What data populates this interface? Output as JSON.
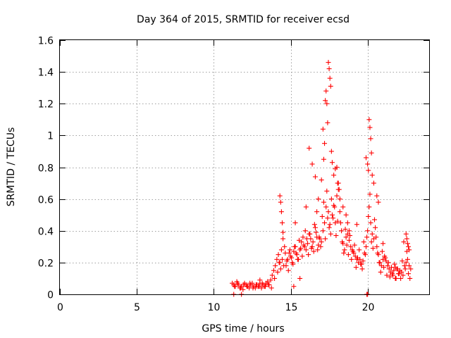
{
  "chart_data": {
    "type": "scatter",
    "title": "Day 364 of 2015, SRMTID for receiver ecsd",
    "xlabel": "GPS time / hours",
    "ylabel": "SRMTID / TECUs",
    "xlim": [
      0,
      24
    ],
    "ylim": [
      0,
      1.6
    ],
    "xticks": [
      0,
      5,
      10,
      15,
      20
    ],
    "xtick_labels": [
      "0",
      "5",
      "10",
      "15",
      "20"
    ],
    "yticks": [
      0,
      0.2,
      0.4,
      0.6,
      0.8,
      1,
      1.2,
      1.4,
      1.6
    ],
    "ytick_labels": [
      "0",
      "0.2",
      "0.4",
      "0.6",
      "0.8",
      "1",
      "1.2",
      "1.4",
      "1.6"
    ],
    "grid": true,
    "marker": "+",
    "marker_color": "#ff0000",
    "series": [
      {
        "name": "SRMTID",
        "x": [
          11.2,
          11.3,
          11.4,
          11.5,
          11.6,
          11.7,
          11.8,
          11.9,
          12.0,
          12.1,
          12.2,
          12.3,
          12.4,
          12.5,
          12.6,
          12.7,
          12.8,
          12.9,
          13.0,
          13.1,
          13.2,
          13.3,
          13.4,
          13.5,
          13.6,
          13.7,
          13.8,
          13.9,
          14.0,
          14.1,
          14.2,
          14.3,
          14.4,
          14.5,
          14.6,
          14.7,
          14.8,
          14.9,
          15.0,
          15.1,
          15.2,
          15.3,
          15.4,
          15.5,
          15.6,
          15.7,
          15.8,
          15.9,
          16.0,
          16.1,
          16.2,
          16.3,
          16.4,
          16.5,
          16.6,
          16.7,
          16.8,
          16.9,
          17.0,
          17.1,
          17.2,
          17.3,
          17.4,
          17.5,
          17.6,
          17.7,
          17.8,
          17.9,
          18.0,
          18.1,
          18.2,
          18.3,
          18.4,
          18.5,
          18.6,
          18.7,
          18.8,
          18.9,
          19.0,
          19.1,
          19.2,
          19.3,
          19.4,
          19.5,
          19.6,
          19.7,
          19.8,
          19.9,
          20.0,
          20.1,
          20.2,
          20.3,
          20.4,
          20.5,
          20.6,
          20.7,
          20.8,
          20.9,
          21.0,
          21.1,
          21.2,
          21.3,
          21.4,
          21.5,
          21.6,
          21.7,
          21.8,
          21.9,
          22.0,
          22.1,
          22.2,
          22.3,
          22.4,
          22.5,
          22.6,
          22.7,
          22.8,
          11.35,
          11.55,
          11.75,
          11.95,
          12.15,
          12.35,
          12.55,
          12.75,
          12.95,
          13.15,
          13.35,
          13.55,
          13.75,
          13.95,
          14.15,
          14.25,
          14.35,
          14.45,
          14.55,
          14.65,
          14.75,
          14.85,
          14.95,
          15.05,
          15.15,
          15.25,
          15.35,
          15.45,
          15.55,
          15.65,
          15.75,
          15.85,
          15.95,
          16.05,
          16.15,
          16.25,
          16.35,
          16.45,
          16.55,
          16.65,
          16.75,
          16.85,
          16.95,
          17.05,
          17.15,
          17.25,
          17.35,
          17.45,
          17.55,
          17.65,
          17.75,
          17.85,
          17.95,
          18.05,
          18.15,
          18.25,
          18.35,
          18.45,
          18.55,
          18.65,
          18.75,
          18.85,
          18.95,
          19.05,
          19.15,
          19.25,
          19.35,
          19.45,
          19.55,
          19.65,
          19.75,
          19.85,
          19.95,
          20.05,
          20.15,
          20.25,
          20.35,
          20.45,
          20.55,
          20.65,
          20.75,
          20.85,
          20.95,
          21.05,
          21.15,
          21.25,
          21.35,
          21.45,
          21.55,
          21.65,
          21.75,
          21.85,
          21.95,
          22.05,
          22.15,
          22.25,
          22.35,
          22.45,
          22.55,
          22.65,
          22.75,
          14.3,
          14.35,
          14.4,
          14.45,
          15.2,
          15.3,
          16.0,
          16.2,
          16.4,
          16.6,
          16.8,
          17.0,
          17.1,
          17.2,
          17.3,
          17.35,
          17.4,
          17.45,
          17.5,
          17.55,
          17.6,
          17.65,
          17.7,
          17.8,
          17.9,
          18.0,
          18.05,
          18.1,
          18.2,
          18.6,
          18.7,
          18.8,
          19.9,
          20.0,
          20.05,
          20.1,
          20.15,
          20.2,
          20.25,
          20.3,
          20.4,
          20.6,
          20.7,
          22.5,
          22.55,
          22.6,
          22.65,
          22.7,
          14.5,
          15.6,
          16.7,
          17.15,
          17.25,
          18.4,
          19.3,
          21.0,
          21.8,
          11.3,
          11.8,
          13.0,
          19.95,
          20.0
        ],
        "y": [
          0.07,
          0.06,
          0.05,
          0.08,
          0.06,
          0.04,
          0.05,
          0.03,
          0.07,
          0.06,
          0.05,
          0.04,
          0.06,
          0.07,
          0.05,
          0.04,
          0.06,
          0.05,
          0.07,
          0.04,
          0.06,
          0.05,
          0.07,
          0.08,
          0.06,
          0.09,
          0.12,
          0.15,
          0.18,
          0.22,
          0.25,
          0.2,
          0.28,
          0.35,
          0.3,
          0.18,
          0.22,
          0.26,
          0.24,
          0.2,
          0.27,
          0.3,
          0.25,
          0.22,
          0.28,
          0.33,
          0.36,
          0.3,
          0.28,
          0.32,
          0.38,
          0.35,
          0.3,
          0.27,
          0.42,
          0.36,
          0.31,
          0.35,
          0.33,
          0.4,
          0.45,
          0.55,
          0.48,
          0.42,
          0.38,
          0.5,
          0.56,
          0.45,
          0.62,
          0.7,
          0.52,
          0.4,
          0.32,
          0.28,
          0.36,
          0.38,
          0.34,
          0.3,
          0.28,
          0.26,
          0.24,
          0.22,
          0.2,
          0.22,
          0.19,
          0.21,
          0.26,
          0.3,
          0.4,
          0.55,
          0.45,
          0.38,
          0.35,
          0.42,
          0.3,
          0.25,
          0.2,
          0.18,
          0.22,
          0.24,
          0.21,
          0.18,
          0.16,
          0.14,
          0.13,
          0.15,
          0.17,
          0.16,
          0.13,
          0.15,
          0.14,
          0.12,
          0.18,
          0.2,
          0.22,
          0.18,
          0.16,
          0.05,
          0.07,
          0.04,
          0.06,
          0.05,
          0.07,
          0.04,
          0.06,
          0.05,
          0.07,
          0.05,
          0.06,
          0.04,
          0.1,
          0.14,
          0.2,
          0.16,
          0.22,
          0.18,
          0.26,
          0.21,
          0.15,
          0.28,
          0.23,
          0.19,
          0.3,
          0.26,
          0.22,
          0.34,
          0.29,
          0.24,
          0.31,
          0.4,
          0.35,
          0.25,
          0.38,
          0.29,
          0.33,
          0.44,
          0.39,
          0.28,
          0.36,
          0.3,
          0.49,
          0.58,
          0.35,
          0.65,
          0.52,
          0.44,
          0.6,
          0.48,
          0.55,
          0.37,
          0.46,
          0.66,
          0.45,
          0.33,
          0.26,
          0.41,
          0.31,
          0.25,
          0.37,
          0.22,
          0.27,
          0.31,
          0.17,
          0.23,
          0.28,
          0.19,
          0.16,
          0.33,
          0.25,
          0.36,
          0.49,
          0.63,
          0.33,
          0.29,
          0.47,
          0.36,
          0.26,
          0.2,
          0.14,
          0.27,
          0.17,
          0.23,
          0.12,
          0.2,
          0.11,
          0.17,
          0.12,
          0.19,
          0.1,
          0.16,
          0.13,
          0.1,
          0.21,
          0.33,
          0.16,
          0.27,
          0.13,
          0.1,
          0.62,
          0.58,
          0.52,
          0.45,
          0.05,
          0.45,
          0.55,
          0.92,
          0.82,
          0.74,
          0.6,
          0.72,
          1.04,
          0.95,
          1.28,
          1.2,
          1.08,
          1.46,
          1.42,
          1.36,
          1.31,
          0.9,
          0.83,
          0.75,
          0.79,
          0.8,
          0.7,
          0.66,
          0.6,
          0.5,
          0.45,
          0.4,
          0.86,
          0.82,
          0.78,
          1.1,
          1.05,
          0.98,
          0.89,
          0.75,
          0.7,
          0.62,
          0.58,
          0.38,
          0.35,
          0.32,
          0.3,
          0.28,
          0.39,
          0.1,
          0.52,
          0.85,
          1.22,
          0.55,
          0.44,
          0.32,
          0.1,
          0.0,
          0.0,
          0.09,
          0.0,
          0.0
        ]
      }
    ]
  }
}
